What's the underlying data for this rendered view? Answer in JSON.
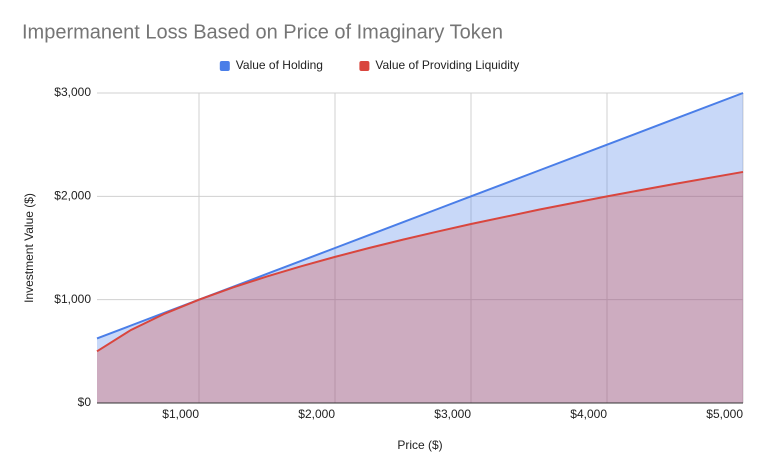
{
  "chart_data": {
    "type": "area",
    "title": "Impermanent Loss Based on Price of Imaginary Token",
    "x_label": "Price ($)",
    "y_label": "Investment Value ($)",
    "x": [
      250,
      500,
      750,
      1000,
      1250,
      1500,
      1750,
      2000,
      2250,
      2500,
      2750,
      3000,
      3500,
      4000,
      4500,
      5000
    ],
    "series": [
      {
        "name": "Value of Holding",
        "color": "#4a7ee8",
        "values": [
          625,
          750,
          875,
          1000,
          1125,
          1250,
          1375,
          1500,
          1625,
          1750,
          1875,
          2000,
          2250,
          2500,
          2750,
          3000
        ]
      },
      {
        "name": "Value of Providing Liquidity",
        "color": "#d9463e",
        "values": [
          500,
          707,
          866,
          1000,
          1118,
          1225,
          1323,
          1414,
          1500,
          1581,
          1658,
          1732,
          1871,
          2000,
          2121,
          2236
        ]
      }
    ],
    "xlim": [
      250,
      5000
    ],
    "xticks": [
      {
        "value": 1000,
        "label": "$1,000"
      },
      {
        "value": 2000,
        "label": "$2,000"
      },
      {
        "value": 3000,
        "label": "$3,000"
      },
      {
        "value": 4000,
        "label": "$4,000"
      },
      {
        "value": 5000,
        "label": "$5,000"
      }
    ],
    "ylim": [
      0,
      3000
    ],
    "yticks": [
      {
        "value": 0,
        "label": "$0"
      },
      {
        "value": 1000,
        "label": "$1,000"
      },
      {
        "value": 2000,
        "label": "$2,000"
      },
      {
        "value": 3000,
        "label": "$3,000"
      }
    ],
    "grid": true,
    "legend_position": "top"
  }
}
